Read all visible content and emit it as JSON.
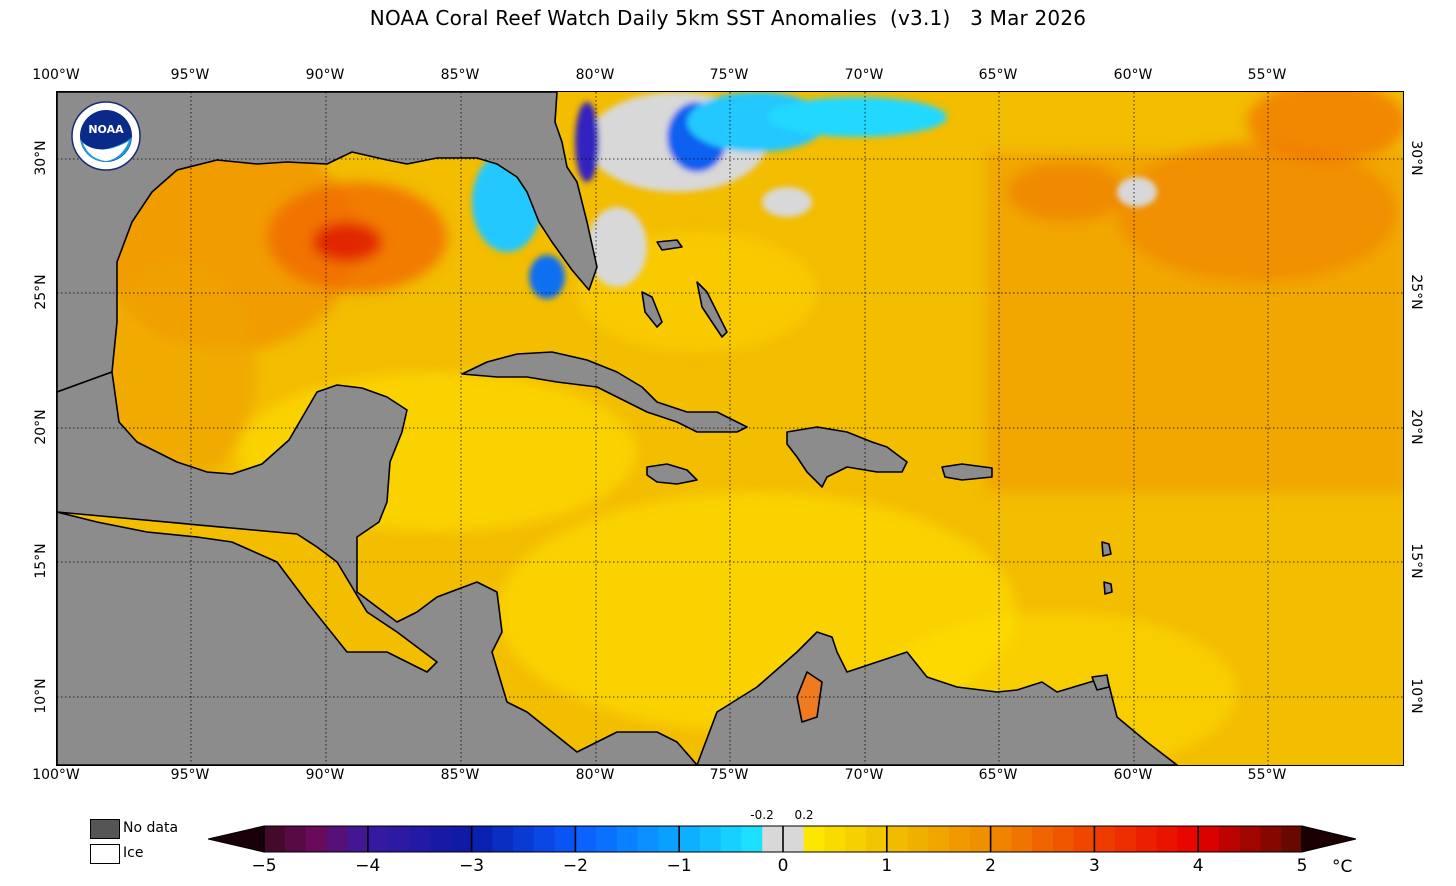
{
  "title": "NOAA Coral Reef Watch Daily 5km SST Anomalies  (v3.1)   3 Mar 2026",
  "map": {
    "lon_labels": [
      "100°W",
      "95°W",
      "90°W",
      "85°W",
      "80°W",
      "75°W",
      "70°W",
      "65°W",
      "60°W",
      "55°W"
    ],
    "lat_labels": [
      "30°N",
      "25°N",
      "20°N",
      "15°N",
      "10°N"
    ],
    "colors": {
      "land": "#8c8c8c",
      "no_data": "#dcdcdc",
      "ocean_base": "#f3bd00"
    }
  },
  "legend": {
    "no_data_label": "No data",
    "ice_label": "Ice",
    "no_data_color": "#555555",
    "ice_color": "#ffffff"
  },
  "colorbar": {
    "ticks": [
      "−5",
      "−4",
      "−3",
      "−2",
      "−1",
      "0",
      "1",
      "2",
      "3",
      "4",
      "5"
    ],
    "neutral_bounds": [
      "-0.2",
      "0.2"
    ],
    "unit": "°C",
    "stops": [
      {
        "value": -5,
        "color": "#3a0a20"
      },
      {
        "value": -4.5,
        "color": "#6a0a5a"
      },
      {
        "value": -4,
        "color": "#3a1aa0"
      },
      {
        "value": -3,
        "color": "#0a1aa8"
      },
      {
        "value": -2,
        "color": "#0a5aff"
      },
      {
        "value": -1,
        "color": "#0aa8ff"
      },
      {
        "value": -0.2,
        "color": "#20e8ff"
      },
      {
        "value": 0,
        "color": "#d8d8d8"
      },
      {
        "value": 0.2,
        "color": "#ffec00"
      },
      {
        "value": 1,
        "color": "#f0c000"
      },
      {
        "value": 2,
        "color": "#f08a00"
      },
      {
        "value": 3,
        "color": "#f04000"
      },
      {
        "value": 4,
        "color": "#e80000"
      },
      {
        "value": 5,
        "color": "#5a0a00"
      }
    ]
  },
  "logo": {
    "text": "NOAA"
  }
}
